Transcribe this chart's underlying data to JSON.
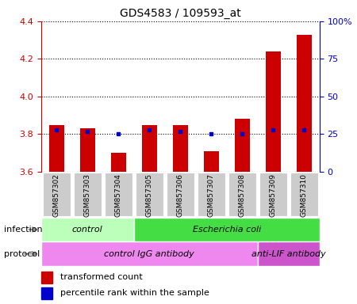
{
  "title": "GDS4583 / 109593_at",
  "samples": [
    "GSM857302",
    "GSM857303",
    "GSM857304",
    "GSM857305",
    "GSM857306",
    "GSM857307",
    "GSM857308",
    "GSM857309",
    "GSM857310"
  ],
  "transformed_counts": [
    3.85,
    3.83,
    3.7,
    3.85,
    3.85,
    3.71,
    3.88,
    4.24,
    4.33
  ],
  "percentile_ranks": [
    28,
    27,
    25,
    28,
    27,
    25,
    25,
    28,
    28
  ],
  "ylim_left": [
    3.6,
    4.4
  ],
  "ylim_right": [
    0,
    100
  ],
  "yticks_left": [
    3.6,
    3.8,
    4.0,
    4.2,
    4.4
  ],
  "yticks_right": [
    0,
    25,
    50,
    75,
    100
  ],
  "bar_color": "#cc0000",
  "dot_color": "#0000cc",
  "bar_width": 0.5,
  "infection_groups": [
    {
      "label": "control",
      "start": 0,
      "end": 3,
      "color": "#bbffbb"
    },
    {
      "label": "Escherichia coli",
      "start": 3,
      "end": 9,
      "color": "#44dd44"
    }
  ],
  "protocol_groups": [
    {
      "label": "control IgG antibody",
      "start": 0,
      "end": 7,
      "color": "#ee88ee"
    },
    {
      "label": "anti-LIF antibody",
      "start": 7,
      "end": 9,
      "color": "#cc55cc"
    }
  ],
  "legend_bar_label": "transformed count",
  "legend_dot_label": "percentile rank within the sample",
  "infection_label": "infection",
  "protocol_label": "protocol",
  "background_color": "#ffffff",
  "sample_bg_color": "#cccccc",
  "left_axis_color": "#cc0000",
  "right_axis_color": "#0000cc"
}
